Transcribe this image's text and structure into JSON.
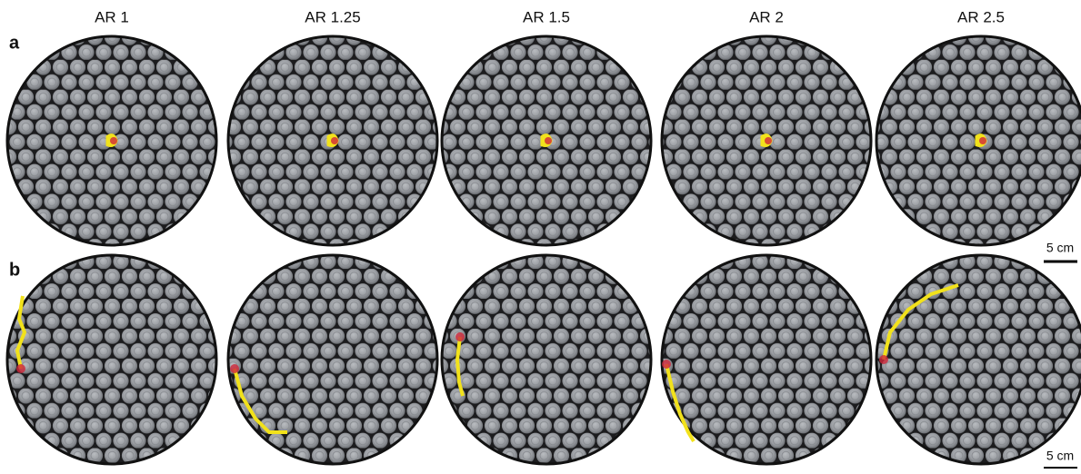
{
  "column_labels": [
    "AR 1",
    "AR 1.25",
    "AR 1.5",
    "AR 2",
    "AR 2.5"
  ],
  "rows": [
    {
      "label": "a",
      "scale_bar": "5 cm"
    },
    {
      "label": "b",
      "scale_bar": "5 cm"
    }
  ]
}
